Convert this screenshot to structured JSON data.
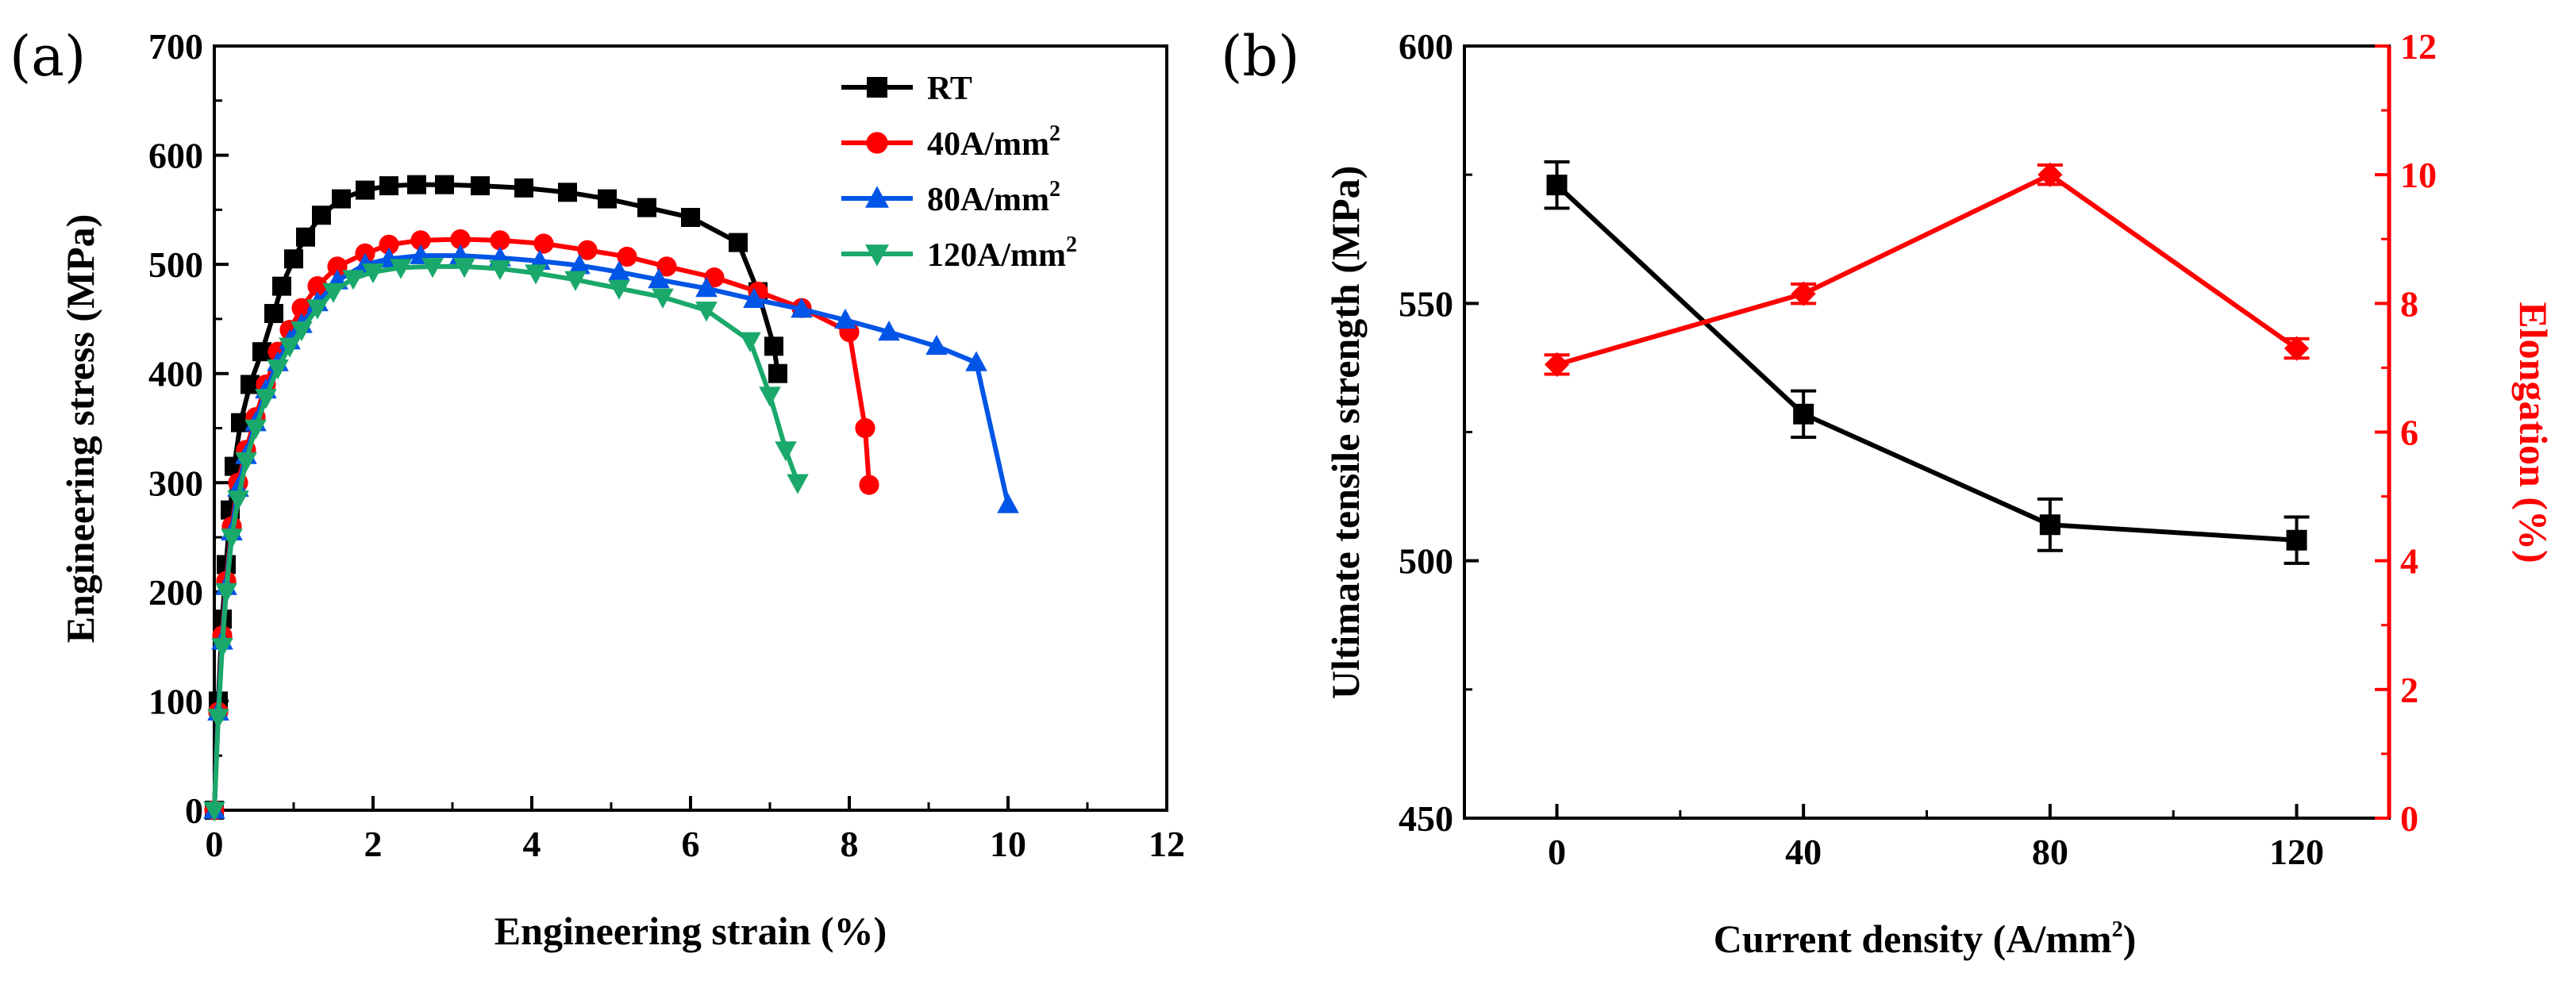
{
  "colors": {
    "rt": "#000000",
    "a40": "#ff0000",
    "a80": "#0055e6",
    "a120": "#1aa86b",
    "uts": "#000000",
    "elong": "#ff0000"
  },
  "chart_data": [
    {
      "type": "line",
      "panel_label": "(a)",
      "title": "",
      "xlabel": "Engineering strain (%)",
      "ylabel": "Engineering stress (MPa)",
      "xlim": [
        0,
        12
      ],
      "ylim": [
        0,
        700
      ],
      "xticks": [
        "0",
        "2",
        "4",
        "6",
        "8",
        "10",
        "12"
      ],
      "yticks": [
        "0",
        "100",
        "200",
        "300",
        "400",
        "500",
        "600",
        "700"
      ],
      "legend_position": "top-right",
      "series": [
        {
          "name": "RT",
          "label_main": "RT",
          "label_sup": "",
          "color_key": "rt",
          "marker": "square",
          "x": [
            0,
            0.05,
            0.1,
            0.15,
            0.2,
            0.25,
            0.33,
            0.45,
            0.6,
            0.75,
            0.85,
            1.0,
            1.15,
            1.35,
            1.6,
            1.9,
            2.2,
            2.55,
            2.9,
            3.35,
            3.9,
            4.45,
            4.95,
            5.45,
            6.0,
            6.6,
            6.85,
            7.05,
            7.1
          ],
          "y": [
            0,
            100,
            175,
            225,
            275,
            315,
            355,
            390,
            420,
            455,
            480,
            505,
            525,
            545,
            560,
            568,
            572,
            573,
            573,
            572,
            570,
            566,
            560,
            552,
            543,
            520,
            475,
            425,
            400
          ]
        },
        {
          "name": "40A/mm2",
          "label_main": "40A/mm",
          "label_sup": "2",
          "color_key": "a40",
          "marker": "circle",
          "x": [
            0,
            0.05,
            0.1,
            0.15,
            0.22,
            0.3,
            0.4,
            0.52,
            0.65,
            0.8,
            0.95,
            1.1,
            1.3,
            1.55,
            1.9,
            2.2,
            2.6,
            3.1,
            3.6,
            4.15,
            4.7,
            5.2,
            5.7,
            6.3,
            6.85,
            7.4,
            8.0,
            8.2,
            8.25
          ],
          "y": [
            0,
            90,
            160,
            210,
            260,
            300,
            330,
            360,
            390,
            420,
            440,
            460,
            480,
            498,
            510,
            518,
            522,
            523,
            522,
            519,
            513,
            507,
            498,
            488,
            475,
            460,
            438,
            350,
            298
          ]
        },
        {
          "name": "80A/mm2",
          "label_main": "80A/mm",
          "label_sup": "2",
          "color_key": "a80",
          "marker": "triangle-up",
          "x": [
            0,
            0.05,
            0.1,
            0.15,
            0.22,
            0.3,
            0.4,
            0.52,
            0.65,
            0.8,
            0.95,
            1.1,
            1.3,
            1.55,
            1.9,
            2.2,
            2.6,
            3.1,
            3.6,
            4.1,
            4.6,
            5.1,
            5.6,
            6.2,
            6.8,
            7.4,
            7.95,
            8.5,
            9.1,
            9.6,
            10.0
          ],
          "y": [
            0,
            90,
            155,
            205,
            255,
            295,
            325,
            355,
            385,
            410,
            430,
            445,
            465,
            485,
            500,
            505,
            508,
            508,
            506,
            503,
            499,
            493,
            486,
            478,
            468,
            459,
            449,
            438,
            425,
            410,
            280
          ]
        },
        {
          "name": "120A/mm2",
          "label_main": "120A/mm",
          "label_sup": "2",
          "color_key": "a120",
          "marker": "triangle-down",
          "x": [
            0,
            0.05,
            0.1,
            0.15,
            0.22,
            0.3,
            0.4,
            0.52,
            0.65,
            0.8,
            0.95,
            1.1,
            1.3,
            1.5,
            1.75,
            2.0,
            2.35,
            2.75,
            3.15,
            3.6,
            4.05,
            4.55,
            5.1,
            5.65,
            6.2,
            6.75,
            7.0,
            7.2,
            7.35
          ],
          "y": [
            0,
            85,
            150,
            200,
            250,
            285,
            320,
            350,
            378,
            405,
            425,
            440,
            460,
            475,
            487,
            493,
            497,
            498,
            498,
            496,
            492,
            486,
            478,
            470,
            458,
            430,
            380,
            330,
            300
          ]
        }
      ]
    },
    {
      "type": "line",
      "panel_label": "(b)",
      "title": "",
      "xlabel_main": "Current density (A/mm",
      "xlabel_sup": "2",
      "xlabel_end": ")",
      "ylabel": "Ultimate tensile strength (MPa)",
      "ylabel_right": "Elongation (%)",
      "categories": [
        "0",
        "40",
        "80",
        "120"
      ],
      "x": [
        0,
        40,
        80,
        120
      ],
      "xlim": [
        -15,
        135
      ],
      "ylim": [
        450,
        600
      ],
      "ylim_right": [
        0,
        12
      ],
      "yticks": [
        "450",
        "500",
        "550",
        "600"
      ],
      "yticks_right": [
        "0",
        "2",
        "4",
        "6",
        "8",
        "10",
        "12"
      ],
      "series": [
        {
          "name": "Ultimate tensile strength",
          "axis": "left",
          "color_key": "uts",
          "marker": "square",
          "values": [
            573,
            528.5,
            507,
            504
          ],
          "errors": [
            4.5,
            4.5,
            5,
            4.5
          ]
        },
        {
          "name": "Elongation",
          "axis": "right",
          "color_key": "elong",
          "marker": "diamond",
          "values": [
            7.05,
            8.15,
            10.0,
            7.3
          ],
          "errors": [
            0.15,
            0.15,
            0.15,
            0.15
          ]
        }
      ]
    }
  ]
}
